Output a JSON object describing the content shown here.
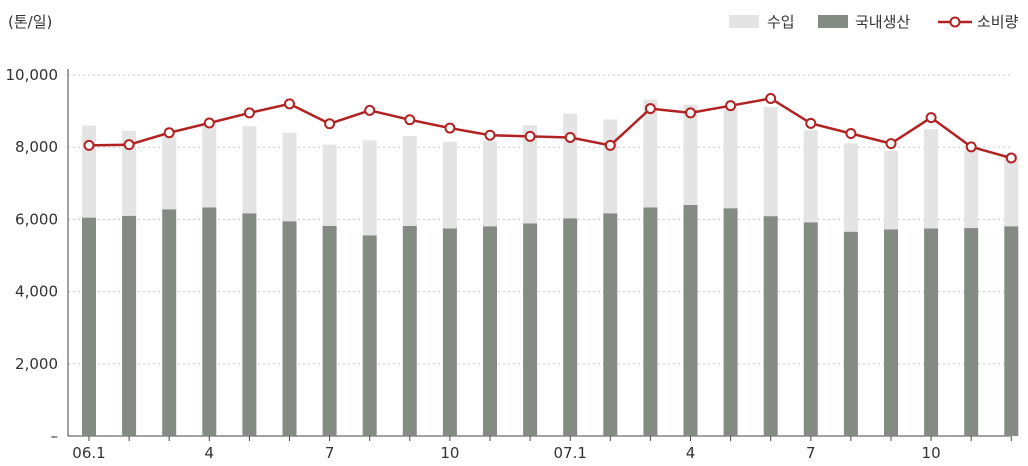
{
  "chart_data": {
    "type": "bar",
    "ylabel": "(톤/일)",
    "ylim": [
      0,
      10000
    ],
    "yticks": [
      "–",
      "2,000",
      "4,000",
      "6,000",
      "8,000",
      "10,000"
    ],
    "ytick_values": [
      0,
      2000,
      4000,
      6000,
      8000,
      10000
    ],
    "xtick_labels": [
      {
        "index": 0,
        "label": "06.1"
      },
      {
        "index": 3,
        "label": "4"
      },
      {
        "index": 6,
        "label": "7"
      },
      {
        "index": 9,
        "label": "10"
      },
      {
        "index": 12,
        "label": "07.1"
      },
      {
        "index": 15,
        "label": "4"
      },
      {
        "index": 18,
        "label": "7"
      },
      {
        "index": 21,
        "label": "10"
      }
    ],
    "grid": true,
    "legend_position": "top-right",
    "stacked": true,
    "series": [
      {
        "name": "국내생산",
        "kind": "bar",
        "color": "#838b83",
        "values": [
          6050,
          6100,
          6280,
          6330,
          6170,
          5950,
          5820,
          5560,
          5820,
          5750,
          5810,
          5890,
          6030,
          6170,
          6330,
          6400,
          6310,
          6090,
          5920,
          5660,
          5720,
          5750,
          5760,
          5810
        ]
      },
      {
        "name": "수입",
        "kind": "bar",
        "color": "#e4e4e4",
        "values": [
          2550,
          2350,
          2020,
          2260,
          2410,
          2450,
          2250,
          2630,
          2490,
          2400,
          2370,
          2720,
          2900,
          2600,
          2990,
          2780,
          2800,
          3020,
          2550,
          2450,
          2180,
          2750,
          2150,
          1990
        ]
      },
      {
        "name": "소비량",
        "kind": "line",
        "color": "#b22222",
        "values": [
          8050,
          8070,
          8400,
          8670,
          8950,
          9200,
          8650,
          9020,
          8760,
          8530,
          8330,
          8300,
          8270,
          8050,
          9070,
          8950,
          9150,
          9350,
          8660,
          8380,
          8100,
          8820,
          8010,
          7700
        ]
      }
    ]
  }
}
